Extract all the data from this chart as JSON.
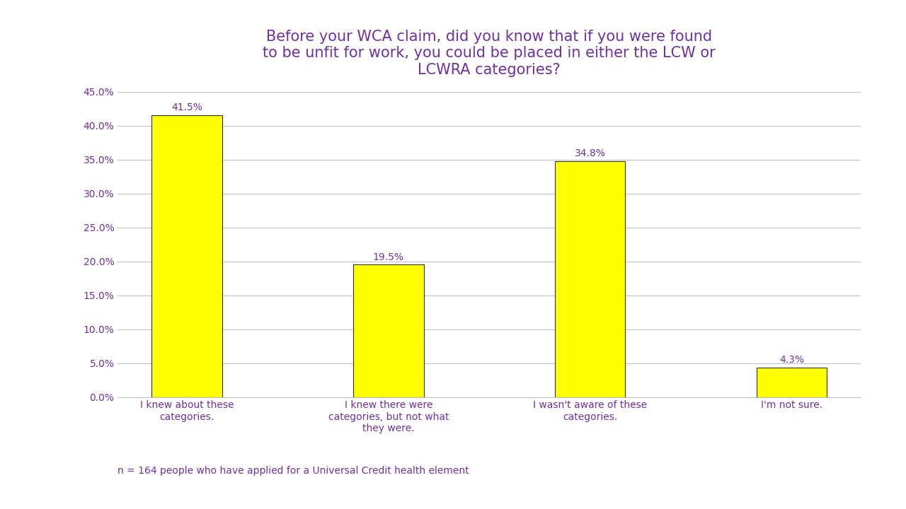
{
  "title": "Before your WCA claim, did you know that if you were found\nto be unfit for work, you could be placed in either the LCW or\nLCWRA categories?",
  "categories": [
    "I knew about these\ncategories.",
    "I knew there were\ncategories, but not what\nthey were.",
    "I wasn't aware of these\ncategories.",
    "I'm not sure."
  ],
  "values": [
    41.5,
    19.5,
    34.8,
    4.3
  ],
  "bar_color": "#FFFF00",
  "bar_edge_color": "#333300",
  "title_color": "#7030A0",
  "tick_color": "#7030A0",
  "annotation_color": "#7030A0",
  "footnote": "n = 164 people who have applied for a Universal Credit health element",
  "footnote_color": "#7030A0",
  "ylim": [
    0,
    45
  ],
  "yticks": [
    0.0,
    5.0,
    10.0,
    15.0,
    20.0,
    25.0,
    30.0,
    35.0,
    40.0,
    45.0
  ],
  "background_color": "#FFFFFF",
  "grid_color": "#C0C0C0",
  "title_fontsize": 15,
  "tick_fontsize": 10,
  "annotation_fontsize": 10,
  "footnote_fontsize": 10,
  "bar_width": 0.35
}
